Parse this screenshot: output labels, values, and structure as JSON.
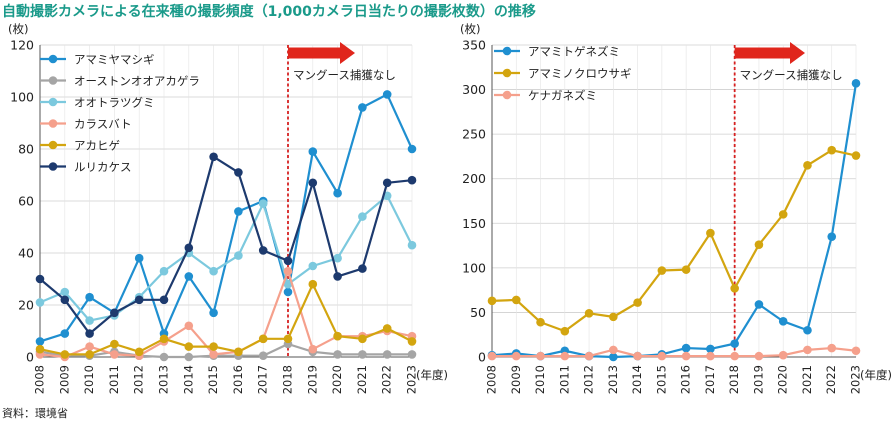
{
  "figure": {
    "title": "自動撮影カメラによる在来種の撮影頻度（1,000カメラ日当たりの撮影枚数）の推移",
    "source": "資料：環境省"
  },
  "chart_data": [
    {
      "type": "line",
      "ylabel": "(枚)",
      "xlabel": "(年度)",
      "ylim": [
        0,
        120
      ],
      "yticks": [
        0,
        20,
        40,
        60,
        80,
        100,
        120
      ],
      "grid": true,
      "legend": "top-left",
      "categories": [
        "2008",
        "2009",
        "2010",
        "2011",
        "2012",
        "2013",
        "2014",
        "2015",
        "2016",
        "2017",
        "2018",
        "2019",
        "2020",
        "2021",
        "2022",
        "2023"
      ],
      "annotation": {
        "label": "マングース捕獲なし",
        "x": "2018"
      },
      "series": [
        {
          "name": "アマミヤマシギ",
          "color": "#1f8fd0",
          "values": [
            6,
            9,
            23,
            17,
            38,
            9,
            31,
            17,
            56,
            60,
            25,
            79,
            63,
            96,
            101,
            80
          ]
        },
        {
          "name": "オーストンオオアカゲラ",
          "color": "#a5a5a5",
          "values": [
            2,
            0.5,
            0.5,
            2,
            0.5,
            0,
            0,
            0.5,
            0.5,
            0.5,
            5,
            2,
            1,
            1,
            1,
            1
          ]
        },
        {
          "name": "オオトラツグミ",
          "color": "#7cc9de",
          "values": [
            21,
            25,
            14,
            16,
            23,
            33,
            40,
            33,
            39,
            59,
            28,
            35,
            38,
            54,
            62,
            43
          ]
        },
        {
          "name": "カラスバト",
          "color": "#f5a08c",
          "values": [
            1,
            0,
            4,
            1,
            0.5,
            6,
            12,
            1,
            2,
            7,
            33,
            3,
            8,
            8,
            10,
            8
          ]
        },
        {
          "name": "アカヒゲ",
          "color": "#d3a50f",
          "values": [
            3,
            1,
            1,
            5,
            2,
            7,
            4,
            4,
            2,
            7,
            7,
            28,
            8,
            7,
            11,
            6
          ]
        },
        {
          "name": "ルリカケス",
          "color": "#1d3a6e",
          "values": [
            30,
            22,
            9,
            17,
            22,
            22,
            42,
            77,
            71,
            41,
            37,
            67,
            31,
            34,
            67,
            68
          ]
        }
      ]
    },
    {
      "type": "line",
      "ylabel": "(枚)",
      "xlabel": "(年度)",
      "ylim": [
        0,
        350
      ],
      "yticks": [
        0,
        50,
        100,
        150,
        200,
        250,
        300,
        350
      ],
      "grid": true,
      "legend": "top-left",
      "categories": [
        "2008",
        "2009",
        "2010",
        "2011",
        "2012",
        "2013",
        "2014",
        "2015",
        "2016",
        "2017",
        "2018",
        "2019",
        "2020",
        "2021",
        "2022",
        "2023"
      ],
      "annotation": {
        "label": "マングース捕獲なし",
        "x": "2018"
      },
      "series": [
        {
          "name": "アマミトゲネズミ",
          "color": "#1f8fd0",
          "values": [
            2,
            4,
            1,
            7,
            1,
            0,
            1,
            3,
            10,
            9,
            15,
            59,
            40,
            30,
            135,
            307
          ]
        },
        {
          "name": "アマミノクロウサギ",
          "color": "#d3a50f",
          "values": [
            63,
            64,
            39,
            29,
            49,
            45,
            61,
            97,
            98,
            139,
            77,
            126,
            160,
            215,
            232,
            226
          ]
        },
        {
          "name": "ケナガネズミ",
          "color": "#f5a08c",
          "values": [
            1,
            1,
            1,
            1,
            1,
            8,
            1,
            1,
            1,
            1,
            1,
            1,
            2,
            8,
            10,
            7
          ]
        }
      ]
    }
  ]
}
